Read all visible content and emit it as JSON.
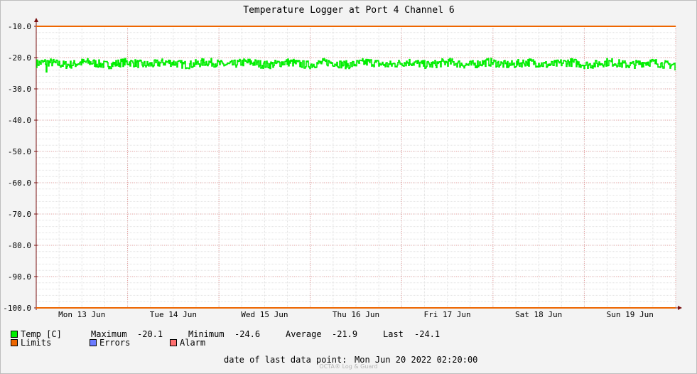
{
  "chart_data": {
    "type": "line",
    "title": "Temperature Logger at Port 4 Channel 6",
    "ylim": [
      -100.0,
      -10.0
    ],
    "yticks": [
      "-10.0",
      "-20.0",
      "-30.0",
      "-40.0",
      "-50.0",
      "-60.0",
      "-70.0",
      "-80.0",
      "-90.0",
      "-100.0"
    ],
    "ytick_values": [
      -10,
      -20,
      -30,
      -40,
      -50,
      -60,
      -70,
      -80,
      -90,
      -100
    ],
    "xlim_days": [
      0,
      7
    ],
    "xticks": [
      "Mon 13 Jun",
      "Tue 14 Jun",
      "Wed 15 Jun",
      "Thu 16 Jun",
      "Fri 17 Jun",
      "Sat 18 Jun",
      "Sun 19 Jun"
    ],
    "grid": true,
    "series": [
      {
        "name": "Temp [C]",
        "color": "#00ee00",
        "mean": -21.9,
        "max": -20.1,
        "min": -24.6,
        "last": -24.1
      },
      {
        "name": "Limits",
        "color": "#ee6600",
        "lines": [
          -10.0,
          -100.0
        ]
      }
    ]
  },
  "legend": {
    "temp_label": "Temp [C]",
    "maximum_label": "Maximum",
    "maximum_value": "-20.1",
    "minimum_label": "Minimum",
    "minimum_value": "-24.6",
    "average_label": "Average",
    "average_value": "-21.9",
    "last_label": "Last",
    "last_value": "-24.1",
    "limits_label": "Limits",
    "errors_label": "Errors",
    "alarm_label": "Alarm"
  },
  "colors": {
    "temp": "#00ee00",
    "limits": "#ee6600",
    "errors": "#6a7aff",
    "alarm": "#ff6f6f"
  },
  "footer": {
    "last_point_label": "date of last data point:",
    "last_point_value": "Mon Jun 20 2022 02:20:00",
    "watermark": "OCTA® Log & Guard"
  }
}
